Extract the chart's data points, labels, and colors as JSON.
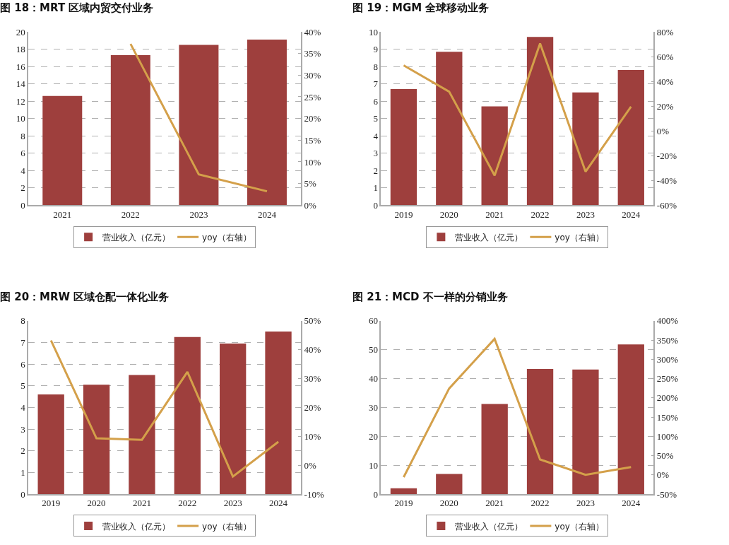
{
  "chart_data": [
    {
      "type": "bar",
      "title": "图 18：MRT 区域内贸交付业务",
      "categories": [
        "2021",
        "2022",
        "2023",
        "2024"
      ],
      "series": [
        {
          "name": "营业收入（亿元）",
          "color": "#9e3f3d",
          "values": [
            12.6,
            17.3,
            18.5,
            19.1
          ]
        },
        {
          "name": "yoy（右轴）",
          "type": "line",
          "axis": "y2",
          "color": "#d4a04a",
          "values": [
            null,
            37.2,
            7.1,
            3.2
          ]
        }
      ],
      "ylim": [
        0,
        20
      ],
      "yticks": [
        0,
        2,
        4,
        6,
        8,
        10,
        12,
        14,
        16,
        18,
        20
      ],
      "y2lim": [
        0,
        40
      ],
      "y2ticks": [
        {
          "value": 0,
          "label": "0%"
        },
        {
          "value": 5,
          "label": "5%"
        },
        {
          "value": 10,
          "label": "10%"
        },
        {
          "value": 15,
          "label": "15%"
        },
        {
          "value": 20,
          "label": "20%"
        },
        {
          "value": 25,
          "label": "25%"
        },
        {
          "value": 30,
          "label": "30%"
        },
        {
          "value": 35,
          "label": "35%"
        },
        {
          "value": 40,
          "label": "40%"
        }
      ],
      "grid": "y",
      "legend": "bottom"
    },
    {
      "type": "bar",
      "title": "图 19：MGM 全球移动业务",
      "categories": [
        "2019",
        "2020",
        "2021",
        "2022",
        "2023",
        "2024"
      ],
      "series": [
        {
          "name": "营业收入（亿元）",
          "color": "#9e3f3d",
          "values": [
            6.7,
            8.85,
            5.7,
            9.7,
            6.5,
            7.8
          ]
        },
        {
          "name": "yoy（右轴）",
          "type": "line",
          "axis": "y2",
          "color": "#d4a04a",
          "values": [
            52.9,
            31.7,
            -36,
            70.6,
            -32.9,
            19.6
          ]
        }
      ],
      "ylim": [
        0,
        10
      ],
      "yticks": [
        0,
        1,
        2,
        3,
        4,
        5,
        6,
        7,
        8,
        9,
        10
      ],
      "y2lim": [
        -60,
        80
      ],
      "y2ticks": [
        {
          "value": -60,
          "label": "-60%"
        },
        {
          "value": -40,
          "label": "-40%"
        },
        {
          "value": -20,
          "label": "-20%"
        },
        {
          "value": 0,
          "label": "0%"
        },
        {
          "value": 20,
          "label": "20%"
        },
        {
          "value": 40,
          "label": "40%"
        },
        {
          "value": 60,
          "label": "60%"
        },
        {
          "value": 80,
          "label": "80%"
        }
      ],
      "grid": "y",
      "legend": "bottom"
    },
    {
      "type": "bar",
      "title": "图 20：MRW 区域仓配一体化业务",
      "categories": [
        "2019",
        "2020",
        "2021",
        "2022",
        "2023",
        "2024"
      ],
      "series": [
        {
          "name": "营业收入（亿元）",
          "color": "#9e3f3d",
          "values": [
            4.6,
            5.05,
            5.5,
            7.25,
            6.95,
            7.5
          ]
        },
        {
          "name": "yoy（右轴）",
          "type": "line",
          "axis": "y2",
          "color": "#d4a04a",
          "values": [
            43.2,
            9.3,
            8.8,
            32.3,
            -3.9,
            8.1
          ]
        }
      ],
      "ylim": [
        0,
        8
      ],
      "yticks": [
        0,
        1,
        2,
        3,
        4,
        5,
        6,
        7,
        8
      ],
      "y2lim": [
        -10,
        50
      ],
      "y2ticks": [
        {
          "value": -10,
          "label": "-10%"
        },
        {
          "value": 0,
          "label": "0%"
        },
        {
          "value": 10,
          "label": "10%"
        },
        {
          "value": 20,
          "label": "20%"
        },
        {
          "value": 30,
          "label": "30%"
        },
        {
          "value": 40,
          "label": "40%"
        },
        {
          "value": 50,
          "label": "50%"
        }
      ],
      "grid": "y",
      "legend": "bottom"
    },
    {
      "type": "bar",
      "title": "图 21：MCD 不一样的分销业务",
      "categories": [
        "2019",
        "2020",
        "2021",
        "2022",
        "2023",
        "2024"
      ],
      "series": [
        {
          "name": "营业收入（亿元）",
          "color": "#9e3f3d",
          "values": [
            2.0,
            7.0,
            31.2,
            43.3,
            43.1,
            51.8
          ]
        },
        {
          "name": "yoy（右轴）",
          "type": "line",
          "axis": "y2",
          "color": "#d4a04a",
          "values": [
            -6,
            224,
            353,
            40,
            0,
            20
          ]
        }
      ],
      "ylim": [
        0,
        60
      ],
      "yticks": [
        0,
        10,
        20,
        30,
        40,
        50,
        60
      ],
      "y2lim": [
        -50,
        400
      ],
      "y2ticks": [
        {
          "value": -50,
          "label": "-50%"
        },
        {
          "value": 0,
          "label": "0%"
        },
        {
          "value": 50,
          "label": "50%"
        },
        {
          "value": 100,
          "label": "100%"
        },
        {
          "value": 150,
          "label": "150%"
        },
        {
          "value": 200,
          "label": "200%"
        },
        {
          "value": 250,
          "label": "250%"
        },
        {
          "value": 300,
          "label": "300%"
        },
        {
          "value": 350,
          "label": "350%"
        },
        {
          "value": 400,
          "label": "400%"
        }
      ],
      "grid": "y",
      "legend": "bottom"
    }
  ]
}
